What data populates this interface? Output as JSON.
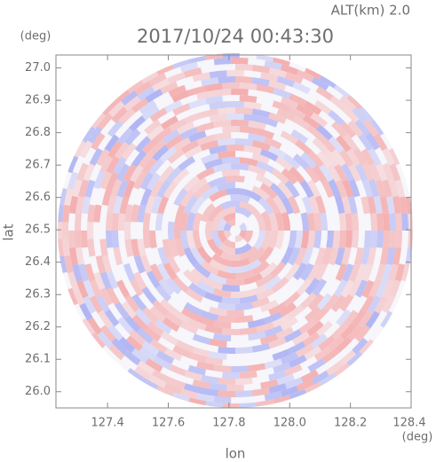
{
  "chart_data": {
    "type": "ppi",
    "title": "2017/10/24 00:43:30",
    "annotation": "ALT(km) 2.0",
    "x_label": "lon",
    "y_label": "lat",
    "x_unit": "(deg)",
    "y_unit": "(deg)",
    "xlim": [
      127.23,
      128.4
    ],
    "ylim": [
      25.95,
      27.04
    ],
    "xticks": [
      127.4,
      127.6,
      127.8,
      {
        "value": 128.0,
        "label": "128.0"
      },
      128.2,
      128.4
    ],
    "yticks": [
      {
        "value": 26.0,
        "label": "26.0"
      },
      26.1,
      26.2,
      26.3,
      26.4,
      26.5,
      26.6,
      26.7,
      26.8,
      26.9,
      {
        "value": 27.0,
        "label": "27.0"
      }
    ],
    "colors": [
      "#f4a6a6",
      "#a9aef2"
    ]
  }
}
